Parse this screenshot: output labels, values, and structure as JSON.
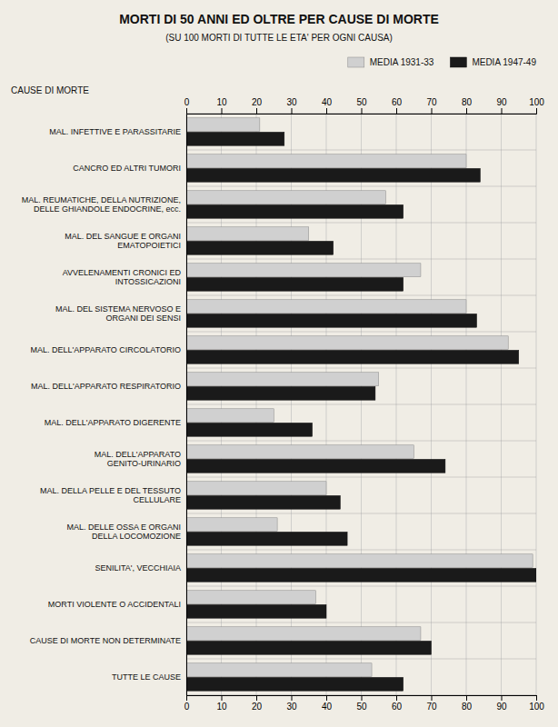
{
  "chart_data": {
    "type": "bar",
    "orientation": "horizontal",
    "title": "MORTI DI 50 ANNI ED OLTRE PER CAUSE DI MORTE",
    "subtitle": "(SU 100 MORTI DI TUTTE LE ETA' PER OGNI CAUSA)",
    "ylabel": "CAUSE DI MORTE",
    "categories": [
      "MAL. INFETTIVE E PARASSITARIE",
      "CANCRO ED ALTRI TUMORI",
      "MAL. REUMATICHE, DELLA NUTRIZIONE,\nDELLE GHIANDOLE ENDOCRINE, ecc.",
      "MAL. DEL SANGUE E ORGANI\nEMATOPOIETICI",
      "AVVELENAMENTI CRONICI ED\nINTOSSICAZIONI",
      "MAL. DEL SISTEMA NERVOSO E\nORGANI DEI SENSI",
      "MAL. DELL'APPARATO CIRCOLATORIO",
      "MAL. DELL'APPARATO RESPIRATORIO",
      "MAL. DELL'APPARATO DIGERENTE",
      "MAL. DELL'APPARATO\nGENITO-URINARIO",
      "MAL. DELLA PELLE E DEL TESSUTO\nCELLULARE",
      "MAL. DELLE OSSA E ORGANI\nDELLA LOCOMOZIONE",
      "SENILITA', VECCHIAIA",
      "MORTI VIOLENTE O ACCIDENTALI",
      "CAUSE DI MORTE NON DETERMINATE",
      "TUTTE LE CAUSE"
    ],
    "series": [
      {
        "name": "MEDIA 1931-33",
        "color": "#d0d0d0",
        "values": [
          21,
          80,
          57,
          35,
          67,
          80,
          92,
          55,
          25,
          65,
          40,
          26,
          99,
          37,
          67,
          53
        ]
      },
      {
        "name": "MEDIA 1947-49",
        "color": "#1a1a1a",
        "values": [
          28,
          84,
          62,
          42,
          62,
          83,
          95,
          54,
          36,
          74,
          44,
          46,
          100,
          40,
          70,
          62
        ]
      }
    ],
    "xlim": [
      0,
      100
    ],
    "xticks": [
      0,
      10,
      20,
      30,
      40,
      50,
      60,
      70,
      80,
      90,
      100
    ],
    "grid": true,
    "legend": "upper right"
  }
}
